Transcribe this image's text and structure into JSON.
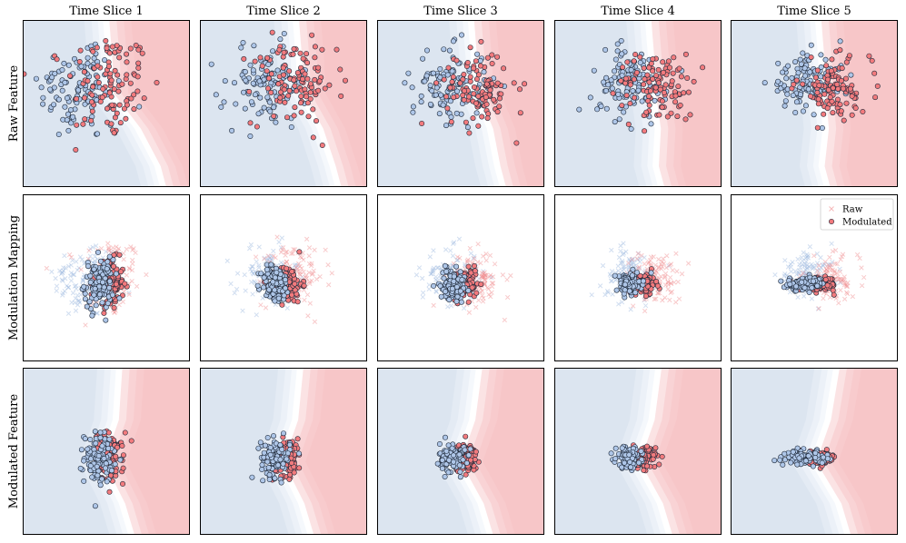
{
  "chart_data": {
    "type": "scatter",
    "column_titles": [
      "Time Slice 1",
      "Time Slice 2",
      "Time Slice 3",
      "Time Slice 4",
      "Time Slice 5"
    ],
    "row_labels": [
      "Raw Feature",
      "Modulation Mapping",
      "Modulated Feature"
    ],
    "legend": {
      "entries": [
        "Raw",
        "Modulated"
      ],
      "placement": "top-right",
      "panel": "Modulation Mapping / Time Slice 5"
    },
    "axes": {
      "xlim": [
        -4,
        4
      ],
      "ylim": [
        -4,
        4
      ],
      "ticks": false,
      "grid": false
    },
    "classes": [
      {
        "name": "class-0",
        "point_color": "#aec6e8",
        "region_color": "#dce5f0"
      },
      {
        "name": "class-1",
        "point_color": "#f27a7d",
        "region_color": "#f7c6c8"
      }
    ],
    "samples_per_class": 110,
    "raw_feature": {
      "class0_centers": [
        [
          -1.2,
          0.8
        ],
        [
          -0.9,
          0.9
        ],
        [
          -0.5,
          0.9
        ],
        [
          -0.4,
          1.1
        ],
        [
          -0.4,
          1.0
        ]
      ],
      "class1_centers": [
        [
          0.1,
          0.8
        ],
        [
          0.5,
          1.0
        ],
        [
          0.8,
          0.7
        ],
        [
          0.9,
          0.8
        ],
        [
          0.9,
          0.7
        ]
      ],
      "spread": [
        [
          1.0,
          1.3
        ],
        [
          1.0,
          1.0
        ],
        [
          0.9,
          0.9
        ],
        [
          0.9,
          0.8
        ],
        [
          0.9,
          0.7
        ]
      ],
      "boundary_x_at_top": [
        0.0,
        0.6,
        0.5,
        0.5,
        0.2
      ],
      "boundary_x_at_bottom": [
        2.3,
        2.2,
        1.6,
        0.7,
        0.2
      ]
    },
    "modulation_mapping": {
      "cluster_center": [
        -0.1,
        -0.3
      ],
      "cluster_spread": [
        [
          0.35,
          0.6
        ],
        [
          0.35,
          0.45
        ],
        [
          0.3,
          0.35
        ],
        [
          0.3,
          0.25
        ],
        [
          0.45,
          0.15
        ]
      ],
      "class_offset_x": [
        0.25,
        0.28,
        0.3,
        0.35,
        0.3
      ]
    },
    "modulated_feature": {
      "boundary_x_at_top": [
        0.5,
        0.7,
        0.8,
        0.9,
        1.0
      ],
      "boundary_kink_x": [
        -0.4,
        -0.3,
        -0.3,
        -0.2,
        -0.2
      ],
      "kink_y": -0.5,
      "boundary_x_at_bottom": [
        1.2,
        1.3,
        1.4,
        1.5,
        1.6
      ]
    }
  }
}
